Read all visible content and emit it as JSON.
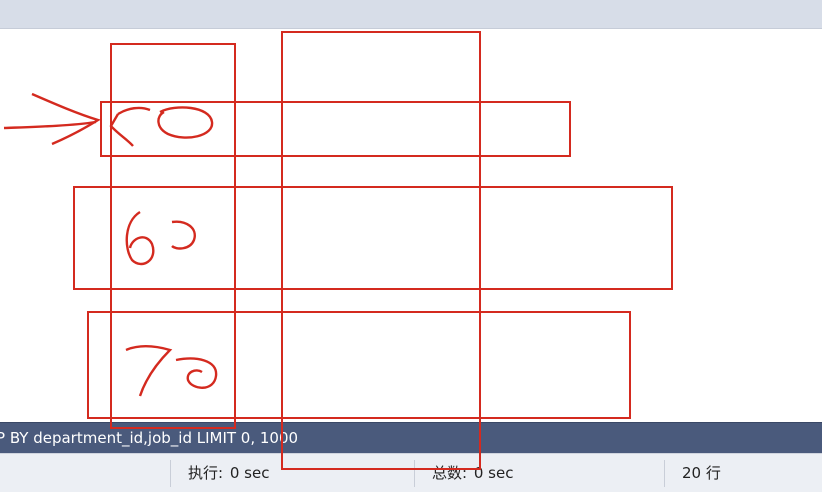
{
  "sql_bar": {
    "query_text": "P BY department_id,job_id LIMIT 0, 1000"
  },
  "status_bar": {
    "exec_label": "执行:",
    "exec_value": "0 sec",
    "total_label": "总数:",
    "total_value": "0 sec",
    "row_count": "20 行"
  },
  "annotations": {
    "handwritten_values": [
      "50",
      "60",
      "70"
    ],
    "ink_color": "#d42a1f"
  },
  "colors": {
    "top_band": "#d7dde8",
    "sql_bar": "#4a5a7c",
    "status_bar": "#eceff4"
  }
}
